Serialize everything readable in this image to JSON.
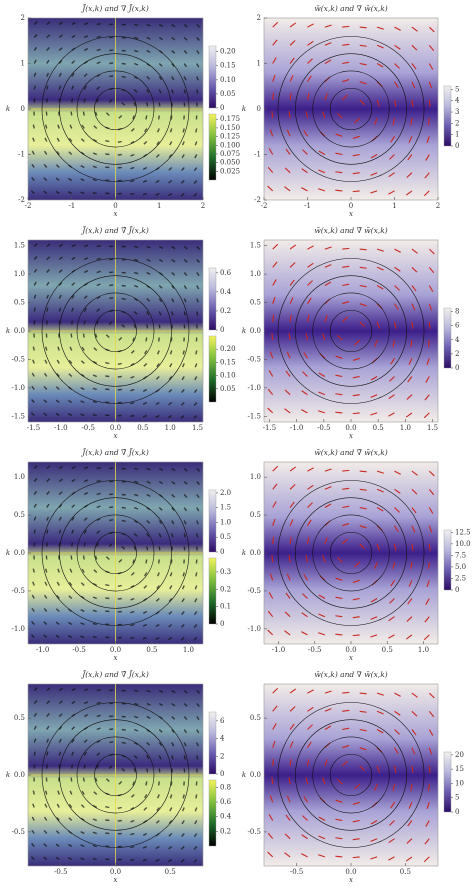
{
  "chart_data": [
    {
      "type": "vectorplot",
      "title": "J̄(x,k) and ∇̄ J̄(x,k)",
      "xlabel": "x",
      "ylabel": "k",
      "xlim": [
        -2,
        2
      ],
      "ylim": [
        -2,
        2
      ],
      "xticks": [
        -2,
        -1,
        0,
        1,
        2
      ],
      "yticks": [
        -2,
        -1,
        0,
        1,
        2
      ],
      "colorbars": [
        {
          "lim": [
            0,
            0.22
          ],
          "ticks": [
            0,
            {
              "value": 0.05,
              "label": "0.05"
            },
            {
              "value": 0.1,
              "label": "0.10"
            },
            {
              "value": 0.15,
              "label": "0.15"
            },
            {
              "value": 0.2,
              "label": "0.20"
            }
          ],
          "colors": [
            "#2b0b63",
            "#6a5db0",
            "#b8b8dc",
            "#f0f0f0"
          ]
        },
        {
          "lim": [
            0,
            0.19
          ],
          "ticks": [
            {
              "value": 0.025,
              "label": "0.025"
            },
            {
              "value": 0.05,
              "label": "0.050"
            },
            {
              "value": 0.075,
              "label": "0.075"
            },
            {
              "value": 0.1,
              "label": "0.100"
            },
            {
              "value": 0.125,
              "label": "0.125"
            },
            {
              "value": 0.15,
              "label": "0.150"
            },
            {
              "value": 0.175,
              "label": "0.175"
            }
          ],
          "colors": [
            "#000000",
            "#1f6b2a",
            "#7fbf3f",
            "#f2f25a"
          ]
        }
      ]
    },
    {
      "type": "streamplot",
      "title": "w̄(x,k) and ∇̄ w̄(x,k)",
      "xlabel": "x",
      "ylabel": "k",
      "xlim": [
        -2,
        2
      ],
      "ylim": [
        -2,
        2
      ],
      "xticks": [
        -2,
        -1,
        0,
        1,
        2
      ],
      "yticks": [
        -2,
        -1,
        0,
        1,
        2
      ],
      "colorbars": [
        {
          "lim": [
            0,
            5.3
          ],
          "ticks": [
            0,
            1,
            2,
            3,
            4,
            5
          ],
          "colors": [
            "#2b0b63",
            "#6a5db0",
            "#b8b8dc",
            "#f0f0f0"
          ]
        }
      ]
    },
    {
      "type": "vectorplot",
      "title": "J̃(x,k) and ∇̃ J̃(x,k)",
      "xlabel": "x",
      "ylabel": "k",
      "xlim": [
        -1.6,
        1.6
      ],
      "ylim": [
        -1.6,
        1.6
      ],
      "xticks": [
        -1.5,
        {
          "value": -1,
          "label": "-1.0"
        },
        -0.5,
        {
          "value": 0,
          "label": "0.0"
        },
        0.5,
        {
          "value": 1,
          "label": "1.0"
        },
        1.5
      ],
      "yticks": [
        -1.5,
        {
          "value": -1,
          "label": "-1.0"
        },
        -0.5,
        {
          "value": 0,
          "label": "0.0"
        },
        0.5,
        {
          "value": 1,
          "label": "1.0"
        },
        1.5
      ],
      "colorbars": [
        {
          "lim": [
            0,
            0.65
          ],
          "ticks": [
            0,
            0.2,
            0.4,
            0.6
          ],
          "colors": [
            "#2b0b63",
            "#6a5db0",
            "#b8b8dc",
            "#f0f0f0"
          ]
        },
        {
          "lim": [
            0,
            0.25
          ],
          "ticks": [
            {
              "value": 0.05,
              "label": "0.05"
            },
            {
              "value": 0.1,
              "label": "0.10"
            },
            {
              "value": 0.15,
              "label": "0.15"
            },
            {
              "value": 0.2,
              "label": "0.20"
            }
          ],
          "colors": [
            "#000000",
            "#1f6b2a",
            "#7fbf3f",
            "#f2f25a"
          ]
        }
      ]
    },
    {
      "type": "streamplot",
      "title": "w̃(x,k) and ∇̃ w̃(x,k)",
      "xlabel": "x",
      "ylabel": "k",
      "xlim": [
        -1.6,
        1.6
      ],
      "ylim": [
        -1.6,
        1.6
      ],
      "xticks": [
        -1.5,
        {
          "value": -1,
          "label": "-1.0"
        },
        -0.5,
        {
          "value": 0,
          "label": "0.0"
        },
        0.5,
        {
          "value": 1,
          "label": "1.0"
        },
        1.5
      ],
      "yticks": [
        -1.5,
        {
          "value": -1,
          "label": "-1.0"
        },
        -0.5,
        {
          "value": 0,
          "label": "0.0"
        },
        0.5,
        {
          "value": 1,
          "label": "1.0"
        },
        1.5
      ],
      "colorbars": [
        {
          "lim": [
            0,
            8.5
          ],
          "ticks": [
            0,
            2,
            4,
            6,
            8
          ],
          "colors": [
            "#2b0b63",
            "#6a5db0",
            "#b8b8dc",
            "#f0f0f0"
          ]
        }
      ]
    },
    {
      "type": "vectorplot",
      "title": "J̃(x,k) and ∇̃ J̃(x,k)",
      "xlabel": "x",
      "ylabel": "k",
      "xlim": [
        -1.2,
        1.2
      ],
      "ylim": [
        -1.2,
        1.2
      ],
      "xticks": [
        {
          "value": -1,
          "label": "-1.0"
        },
        -0.5,
        {
          "value": 0,
          "label": "0.0"
        },
        0.5,
        {
          "value": 1,
          "label": "1.0"
        }
      ],
      "yticks": [
        {
          "value": -1,
          "label": "-1.0"
        },
        -0.5,
        {
          "value": 0,
          "label": "0.0"
        },
        0.5,
        {
          "value": 1,
          "label": "1.0"
        }
      ],
      "colorbars": [
        {
          "lim": [
            0,
            2.1
          ],
          "ticks": [
            0,
            0.5,
            {
              "value": 1,
              "label": "1.0"
            },
            1.5,
            {
              "value": 2,
              "label": "2.0"
            }
          ],
          "colors": [
            "#2b0b63",
            "#6a5db0",
            "#b8b8dc",
            "#f0f0f0"
          ]
        },
        {
          "lim": [
            0,
            0.38
          ],
          "ticks": [
            0,
            0.1,
            0.2,
            0.3
          ],
          "colors": [
            "#000000",
            "#1f6b2a",
            "#7fbf3f",
            "#f2f25a"
          ]
        }
      ]
    },
    {
      "type": "streamplot",
      "title": "w̃(x,k) and ∇̃ w̃(x,k)",
      "xlabel": "x",
      "ylabel": "k",
      "xlim": [
        -1.2,
        1.2
      ],
      "ylim": [
        -1.2,
        1.2
      ],
      "xticks": [
        {
          "value": -1,
          "label": "-1.0"
        },
        -0.5,
        {
          "value": 0,
          "label": "0.0"
        },
        0.5,
        {
          "value": 1,
          "label": "1.0"
        }
      ],
      "yticks": [
        {
          "value": -1,
          "label": "-1.0"
        },
        -0.5,
        {
          "value": 0,
          "label": "0.0"
        },
        0.5,
        {
          "value": 1,
          "label": "1.0"
        }
      ],
      "colorbars": [
        {
          "lim": [
            0,
            13
          ],
          "ticks": [
            0,
            2.5,
            {
              "value": 5,
              "label": "5.0"
            },
            7.5,
            {
              "value": 10,
              "label": "10.0"
            },
            12.5
          ],
          "colors": [
            "#2b0b63",
            "#6a5db0",
            "#b8b8dc",
            "#f0f0f0"
          ]
        }
      ]
    },
    {
      "type": "vectorplot",
      "title": "J̃(x,k) and ∇̃ J̃(x,k)",
      "xlabel": "x",
      "ylabel": "k",
      "xlim": [
        -0.8,
        0.8
      ],
      "ylim": [
        -0.8,
        0.8
      ],
      "xticks": [
        -0.5,
        {
          "value": 0,
          "label": "0.0"
        },
        0.5
      ],
      "yticks": [
        -0.5,
        {
          "value": 0,
          "label": "0.0"
        },
        0.5
      ],
      "colorbars": [
        {
          "lim": [
            0,
            7
          ],
          "ticks": [
            0,
            2,
            4,
            6
          ],
          "colors": [
            "#2b0b63",
            "#6a5db0",
            "#b8b8dc",
            "#f0f0f0"
          ]
        },
        {
          "lim": [
            0,
            0.9
          ],
          "ticks": [
            0.2,
            0.4,
            0.6,
            0.8
          ],
          "colors": [
            "#000000",
            "#1f6b2a",
            "#7fbf3f",
            "#f2f25a"
          ]
        }
      ]
    },
    {
      "type": "streamplot",
      "title": "w̄(x,k) and ∇̄ w̄(x,k)",
      "xlabel": "x",
      "ylabel": "k",
      "xlim": [
        -0.8,
        0.8
      ],
      "ylim": [
        -0.8,
        0.8
      ],
      "xticks": [
        -0.5,
        {
          "value": 0,
          "label": "0.0"
        },
        0.5
      ],
      "yticks": [
        -0.5,
        {
          "value": 0,
          "label": "0.0"
        },
        0.5
      ],
      "colorbars": [
        {
          "lim": [
            0,
            21
          ],
          "ticks": [
            0,
            5,
            10,
            15,
            20
          ],
          "colors": [
            "#2b0b63",
            "#6a5db0",
            "#b8b8dc",
            "#f0f0f0"
          ]
        }
      ]
    }
  ]
}
